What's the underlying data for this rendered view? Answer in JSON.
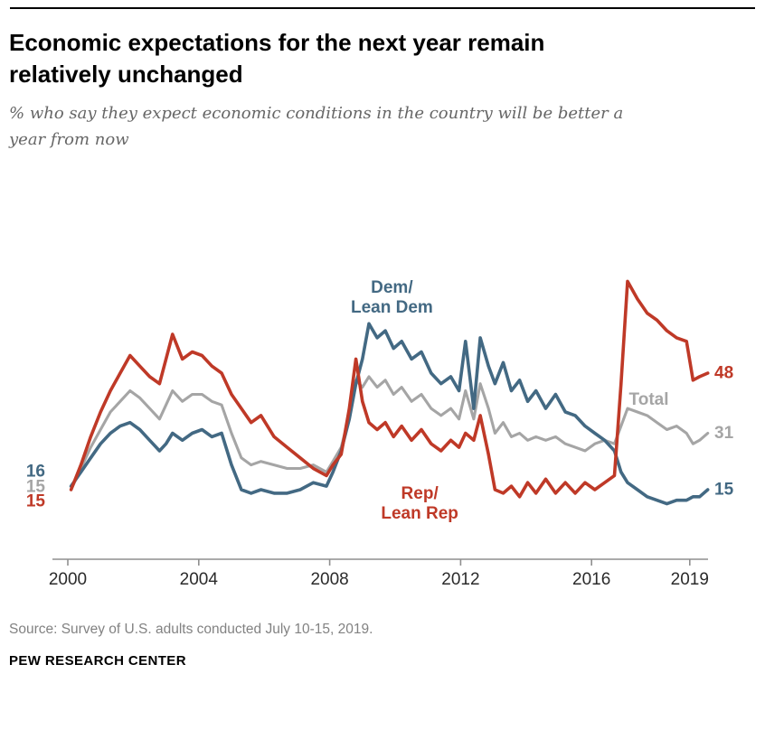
{
  "header": {
    "title_line1": "Economic expectations for the next year remain",
    "title_line2": "relatively unchanged",
    "subtitle_line1": "% who say they expect economic conditions in the country will be better a",
    "subtitle_line2": "year from now"
  },
  "footer": {
    "source": "Source: Survey of U.S. adults conducted July 10-15, 2019.",
    "brand": "PEW RESEARCH CENTER"
  },
  "chart_data": {
    "type": "line",
    "title": "Economic expectations for the next year remain relatively unchanged",
    "xlabel": "",
    "ylabel": "",
    "x_ticks": [
      2000,
      2004,
      2008,
      2012,
      2016,
      2019
    ],
    "xlim": [
      2000,
      2019.6
    ],
    "ylim": [
      0,
      80
    ],
    "grid": false,
    "legend": "inline-labels",
    "x_years": [
      2000.1,
      2000.4,
      2000.7,
      2001.0,
      2001.3,
      2001.6,
      2001.9,
      2002.2,
      2002.5,
      2002.8,
      2003.0,
      2003.2,
      2003.5,
      2003.8,
      2004.1,
      2004.4,
      2004.7,
      2005.0,
      2005.3,
      2005.6,
      2005.9,
      2006.3,
      2006.7,
      2007.1,
      2007.5,
      2007.9,
      2008.1,
      2008.35,
      2008.6,
      2008.8,
      2009.0,
      2009.2,
      2009.45,
      2009.7,
      2009.95,
      2010.2,
      2010.5,
      2010.8,
      2011.1,
      2011.4,
      2011.7,
      2011.95,
      2012.15,
      2012.4,
      2012.6,
      2012.85,
      2013.05,
      2013.3,
      2013.55,
      2013.8,
      2014.05,
      2014.3,
      2014.6,
      2014.9,
      2015.2,
      2015.5,
      2015.8,
      2016.1,
      2016.4,
      2016.7,
      2016.9,
      2017.1,
      2017.4,
      2017.7,
      2018.0,
      2018.3,
      2018.6,
      2018.9,
      2019.1,
      2019.3,
      2019.55
    ],
    "series": [
      {
        "id": "dem",
        "name": "Dem/Lean Dem",
        "label_line1": "Dem/",
        "label_line2": "Lean Dem",
        "color": "#436983",
        "start_label": "16",
        "end_label": "15",
        "values": [
          16,
          20,
          24,
          28,
          31,
          33,
          34,
          32,
          29,
          26,
          28,
          31,
          29,
          31,
          32,
          30,
          31,
          22,
          15,
          14,
          15,
          14,
          14,
          15,
          17,
          16,
          20,
          26,
          35,
          45,
          52,
          62,
          58,
          60,
          55,
          57,
          52,
          54,
          48,
          45,
          47,
          43,
          57,
          38,
          58,
          50,
          45,
          51,
          43,
          46,
          40,
          43,
          38,
          42,
          37,
          36,
          33,
          31,
          29,
          26,
          20,
          17,
          15,
          13,
          12,
          11,
          12,
          12,
          13,
          13,
          15
        ]
      },
      {
        "id": "total",
        "name": "Total",
        "label_line1": "Total",
        "label_line2": "",
        "color": "#a5a5a5",
        "start_label": "15",
        "end_label": "31",
        "values": [
          15,
          21,
          27,
          32,
          37,
          40,
          43,
          41,
          38,
          35,
          39,
          43,
          40,
          42,
          42,
          40,
          39,
          31,
          24,
          22,
          23,
          22,
          21,
          21,
          22,
          20,
          23,
          27,
          36,
          46,
          44,
          47,
          44,
          46,
          42,
          44,
          40,
          42,
          38,
          36,
          38,
          35,
          43,
          35,
          45,
          38,
          31,
          34,
          30,
          31,
          29,
          30,
          29,
          30,
          28,
          27,
          26,
          28,
          29,
          28,
          33,
          38,
          37,
          36,
          34,
          32,
          33,
          31,
          28,
          29,
          31
        ]
      },
      {
        "id": "rep",
        "name": "Rep/Lean Rep",
        "label_line1": "Rep/",
        "label_line2": "Lean Rep",
        "color": "#bf3927",
        "start_label": "15",
        "end_label": "48",
        "values": [
          15,
          22,
          30,
          37,
          43,
          48,
          53,
          50,
          47,
          45,
          52,
          59,
          52,
          54,
          53,
          50,
          48,
          42,
          38,
          34,
          36,
          30,
          27,
          24,
          21,
          19,
          22,
          25,
          38,
          52,
          40,
          34,
          32,
          34,
          30,
          33,
          29,
          32,
          28,
          26,
          29,
          27,
          31,
          29,
          36,
          25,
          15,
          14,
          16,
          13,
          17,
          14,
          18,
          14,
          17,
          14,
          17,
          15,
          17,
          19,
          45,
          74,
          69,
          65,
          63,
          60,
          58,
          57,
          46,
          47,
          48
        ]
      }
    ]
  }
}
